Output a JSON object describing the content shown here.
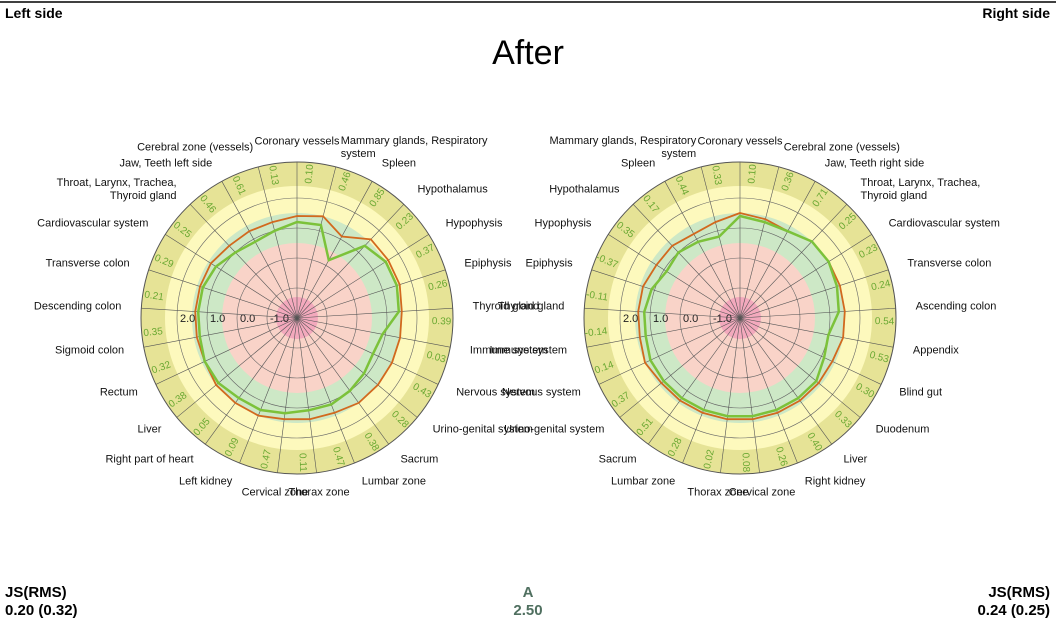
{
  "page": {
    "left_label": "Left side",
    "right_label": "Right side",
    "title": "After",
    "left_metric": "JS(RMS)",
    "left_metric_value": "0.20 (0.32)",
    "center_metric": "A",
    "center_metric_value": "2.50",
    "right_metric": "JS(RMS)",
    "right_metric_value": "0.24 (0.25)"
  },
  "chart_data": [
    {
      "type": "radar",
      "categories": [
        "Coronary vessels",
        "Mammary glands, Respiratory system",
        "Spleen",
        "Hypothalamus",
        "Hypophysis",
        "Epiphysis",
        "Thyroid gland",
        "Immune system",
        "Nervous system",
        "Urino-genital system",
        "Sacrum",
        "Lumbar zone",
        "Thorax zone",
        "Cervical zone",
        "Left kidney",
        "Right part of heart",
        "Liver",
        "Rectum",
        "Sigmoid colon",
        "Descending colon",
        "Transverse colon",
        "Cardiovascular system",
        "Throat, Larynx, Trachea, Thyroid gland",
        "Jaw, Teeth left side",
        "Cerebral zone (vessels)"
      ],
      "series": [
        {
          "color": "#d2691e",
          "values": [
            1.4,
            1.5,
            1.1,
            1.6,
            1.6,
            1.6,
            1.5,
            1.5,
            1.5,
            1.5,
            1.5,
            1.4,
            1.4,
            1.4,
            1.5,
            1.5,
            1.5,
            1.4,
            1.4,
            1.4,
            1.4,
            1.4,
            1.3,
            1.3,
            1.3
          ]
        },
        {
          "color": "#7cc23a",
          "values": [
            1.2,
            1.2,
            0.2,
            1.3,
            1.5,
            1.5,
            1.4,
            0.9,
            0.8,
            0.9,
            1.0,
            1.1,
            1.1,
            1.2,
            1.3,
            1.3,
            1.4,
            1.4,
            1.3,
            1.3,
            1.3,
            1.2,
            1.0,
            0.9,
            1.0
          ]
        }
      ],
      "ring_values": [
        0.1,
        0.46,
        0.85,
        0.23,
        0.37,
        0.26,
        0.39,
        0.03,
        0.43,
        0.28,
        0.38,
        0.47,
        0.11,
        0.47,
        0.09,
        0.05,
        0.38,
        0.32,
        0.35,
        0.21,
        0.29,
        0.25,
        0.46,
        0.61,
        0.13
      ],
      "ring_value_labels": [
        "0.10",
        "0.46",
        "0.85",
        "0.23",
        "0.37",
        "0.26",
        "0.39",
        "0.03",
        "0.43",
        "0.28",
        "0.38",
        "0.47",
        "0.11",
        "0.47",
        "0.09",
        "0.05",
        "0.38",
        "0.32",
        "0.35",
        "0.21",
        "0.29",
        "0.25",
        "0.46",
        "0.61",
        "0.13"
      ],
      "rlim": [
        -2,
        3.2
      ],
      "rticks": [
        {
          "value": -1,
          "label": "-1.0"
        },
        {
          "value": 0,
          "label": "0.0"
        },
        {
          "value": 1,
          "label": "1.0"
        },
        {
          "value": 2,
          "label": "2.0"
        }
      ],
      "zones": [
        {
          "to": -1.3,
          "color": "#f3a9bd"
        },
        {
          "to": 0.5,
          "color": "#f9d3c8"
        },
        {
          "to": 1.5,
          "color": "#cde8c6"
        },
        {
          "to": 2.4,
          "color": "#fdf9bd"
        },
        {
          "to": 3.2,
          "color": "#e6e396"
        }
      ]
    },
    {
      "type": "radar",
      "categories": [
        "Coronary vessels",
        "Cerebral zone (vessels)",
        "Jaw, Teeth right side",
        "Throat, Larynx, Trachea, Thyroid gland",
        "Cardiovascular system",
        "Transverse colon",
        "Ascending colon",
        "Appendix",
        "Blind gut",
        "Duodenum",
        "Liver",
        "Right kidney",
        "Cervical zone",
        "Thorax zone",
        "Lumbar zone",
        "Sacrum",
        "Urino-genital system",
        "Nervous system",
        "Immune system",
        "Thyroid gland",
        "Epiphysis",
        "Hypophysis",
        "Hypothalamus",
        "Spleen",
        "Mammary glands, Respiratory system"
      ],
      "series": [
        {
          "color": "#d2691e",
          "values": [
            1.5,
            1.4,
            1.3,
            1.5,
            1.5,
            1.5,
            1.5,
            1.5,
            1.4,
            1.4,
            1.4,
            1.4,
            1.4,
            1.4,
            1.4,
            1.4,
            1.4,
            1.5,
            1.4,
            1.4,
            1.4,
            1.3,
            1.3,
            1.2,
            1.3
          ]
        },
        {
          "color": "#7cc23a",
          "values": [
            1.4,
            1.3,
            1.3,
            1.5,
            1.5,
            1.4,
            1.3,
            1.0,
            1.1,
            1.3,
            1.3,
            1.3,
            1.3,
            1.3,
            1.3,
            1.3,
            1.3,
            1.3,
            1.2,
            1.2,
            1.1,
            0.9,
            1.0,
            0.9,
            0.8
          ]
        }
      ],
      "ring_values": [
        0.1,
        0.36,
        0.71,
        0.25,
        0.23,
        0.24,
        0.54,
        0.53,
        0.3,
        0.33,
        0.4,
        0.26,
        0.08,
        0.02,
        0.28,
        0.51,
        0.37,
        0.14,
        -0.14,
        -0.11,
        -0.37,
        0.35,
        0.17,
        0.44,
        0.33
      ],
      "ring_value_labels": [
        "0.10",
        "0.36",
        "0.71",
        "0.25",
        "0.23",
        "0.24",
        "0.54",
        "0.53",
        "0.30",
        "0.33",
        "0.40",
        "0.26",
        "0.08",
        "0.02",
        "0.28",
        "0.51",
        "0.37",
        "0.14",
        "-0.14",
        "-0.11",
        "-0.37",
        "0.35",
        "0.17",
        "0.44",
        "0.33"
      ],
      "rlim": [
        -2,
        3.2
      ],
      "rticks": [
        {
          "value": -1,
          "label": "-1.0"
        },
        {
          "value": 0,
          "label": "0.0"
        },
        {
          "value": 1,
          "label": "1.0"
        },
        {
          "value": 2,
          "label": "2.0"
        }
      ],
      "zones": [
        {
          "to": -1.3,
          "color": "#f3a9bd"
        },
        {
          "to": 0.5,
          "color": "#f9d3c8"
        },
        {
          "to": 1.5,
          "color": "#cde8c6"
        },
        {
          "to": 2.4,
          "color": "#fdf9bd"
        },
        {
          "to": 3.2,
          "color": "#e6e396"
        }
      ]
    }
  ]
}
